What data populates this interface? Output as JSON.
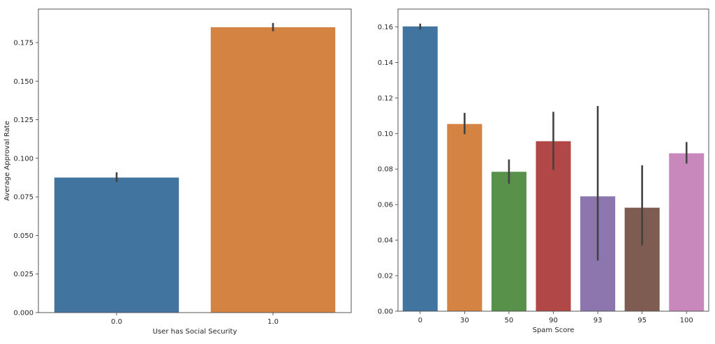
{
  "chart_data": [
    {
      "type": "bar",
      "title": "",
      "xlabel": "User has Social Security",
      "ylabel": "Average Approval Rate",
      "categories": [
        "0.0",
        "1.0"
      ],
      "values": [
        0.0877,
        0.1851
      ],
      "error_low": [
        0.0846,
        0.1823
      ],
      "error_high": [
        0.0909,
        0.1877
      ],
      "colors": [
        "#4274a0",
        "#d48342"
      ],
      "ylim": [
        0,
        0.1967
      ],
      "yticks": [
        0.0,
        0.025,
        0.05,
        0.075,
        0.1,
        0.125,
        0.15,
        0.175
      ],
      "ytick_labels": [
        "0.000",
        "0.025",
        "0.050",
        "0.075",
        "0.100",
        "0.125",
        "0.150",
        "0.175"
      ],
      "grid": false
    },
    {
      "type": "bar",
      "title": "",
      "xlabel": "Spam Score",
      "ylabel": "",
      "categories": [
        "0",
        "30",
        "50",
        "90",
        "93",
        "95",
        "100"
      ],
      "values": [
        0.1604,
        0.1055,
        0.0786,
        0.0958,
        0.0648,
        0.0584,
        0.089
      ],
      "error_low": [
        0.1584,
        0.0996,
        0.0717,
        0.0796,
        0.0285,
        0.037,
        0.0831
      ],
      "error_high": [
        0.1618,
        0.1116,
        0.0854,
        0.1122,
        0.1155,
        0.0821,
        0.0952
      ],
      "colors": [
        "#4274a0",
        "#d48342",
        "#57914a",
        "#b14747",
        "#8d76ae",
        "#7f5c52",
        "#c888bc"
      ],
      "ylim": [
        0,
        0.17
      ],
      "yticks": [
        0,
        0.02,
        0.04,
        0.06,
        0.08,
        0.1,
        0.12,
        0.14,
        0.16
      ],
      "ytick_labels": [
        "0.00",
        "0.02",
        "0.04",
        "0.06",
        "0.08",
        "0.10",
        "0.12",
        "0.14",
        "0.16"
      ],
      "grid": false
    }
  ]
}
